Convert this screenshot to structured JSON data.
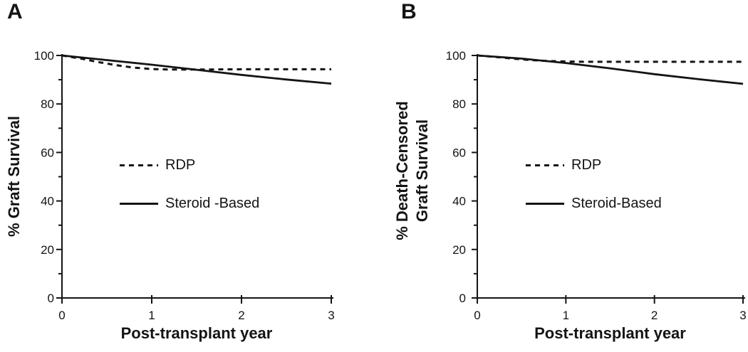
{
  "figure": {
    "background": "#ffffff",
    "ink_color": "#141414"
  },
  "chart_data": [
    {
      "type": "line",
      "panel_label": "A",
      "title": "",
      "xlabel": "Post-transplant year",
      "ylabel": "% Graft Survival",
      "ylabel_lines": [
        "% Graft Survival"
      ],
      "xlim": [
        0,
        3
      ],
      "ylim": [
        0,
        100
      ],
      "x_ticks": [
        0,
        1,
        2,
        3
      ],
      "y_ticks_major": [
        0,
        20,
        40,
        60,
        80,
        100
      ],
      "y_ticks_minor": [
        10,
        30,
        50,
        70,
        90
      ],
      "grid": false,
      "legend_position": "inside-center-left",
      "series": [
        {
          "name": "RDP",
          "line_style": "dashed",
          "x": [
            0,
            0.2,
            0.4,
            0.6,
            0.8,
            1,
            1.2,
            1.5,
            2,
            2.5,
            3
          ],
          "y": [
            100,
            98.8,
            97.3,
            96.0,
            95.0,
            94.4,
            94.2,
            94.2,
            94.3,
            94.3,
            94.3
          ]
        },
        {
          "name": "Steroid -Based",
          "line_style": "solid",
          "x": [
            0,
            0.5,
            1,
            1.5,
            2,
            2.5,
            3
          ],
          "y": [
            100,
            98.1,
            96.2,
            94.1,
            92.0,
            90.1,
            88.4
          ]
        }
      ]
    },
    {
      "type": "line",
      "panel_label": "B",
      "title": "",
      "xlabel": "Post-transplant year",
      "ylabel": "% Death-Censored Graft Survival",
      "ylabel_lines": [
        "% Death-Censored",
        "Graft Survival"
      ],
      "xlim": [
        0,
        3
      ],
      "ylim": [
        0,
        100
      ],
      "x_ticks": [
        0,
        1,
        2,
        3
      ],
      "y_ticks_major": [
        0,
        20,
        40,
        60,
        80,
        100
      ],
      "y_ticks_minor": [
        10,
        30,
        50,
        70,
        90
      ],
      "grid": false,
      "legend_position": "inside-center-left",
      "series": [
        {
          "name": "RDP",
          "line_style": "dashed",
          "x": [
            0,
            0.2,
            0.4,
            0.6,
            0.8,
            1,
            1.25,
            1.5,
            2,
            2.5,
            3
          ],
          "y": [
            100,
            99.4,
            98.7,
            98.1,
            97.7,
            97.5,
            97.4,
            97.4,
            97.4,
            97.4,
            97.4
          ]
        },
        {
          "name": "Steroid-Based",
          "line_style": "solid",
          "x": [
            0,
            0.5,
            1,
            1.5,
            2,
            2.5,
            3
          ],
          "y": [
            100,
            98.7,
            96.9,
            94.7,
            92.3,
            90.2,
            88.3
          ]
        }
      ]
    }
  ]
}
